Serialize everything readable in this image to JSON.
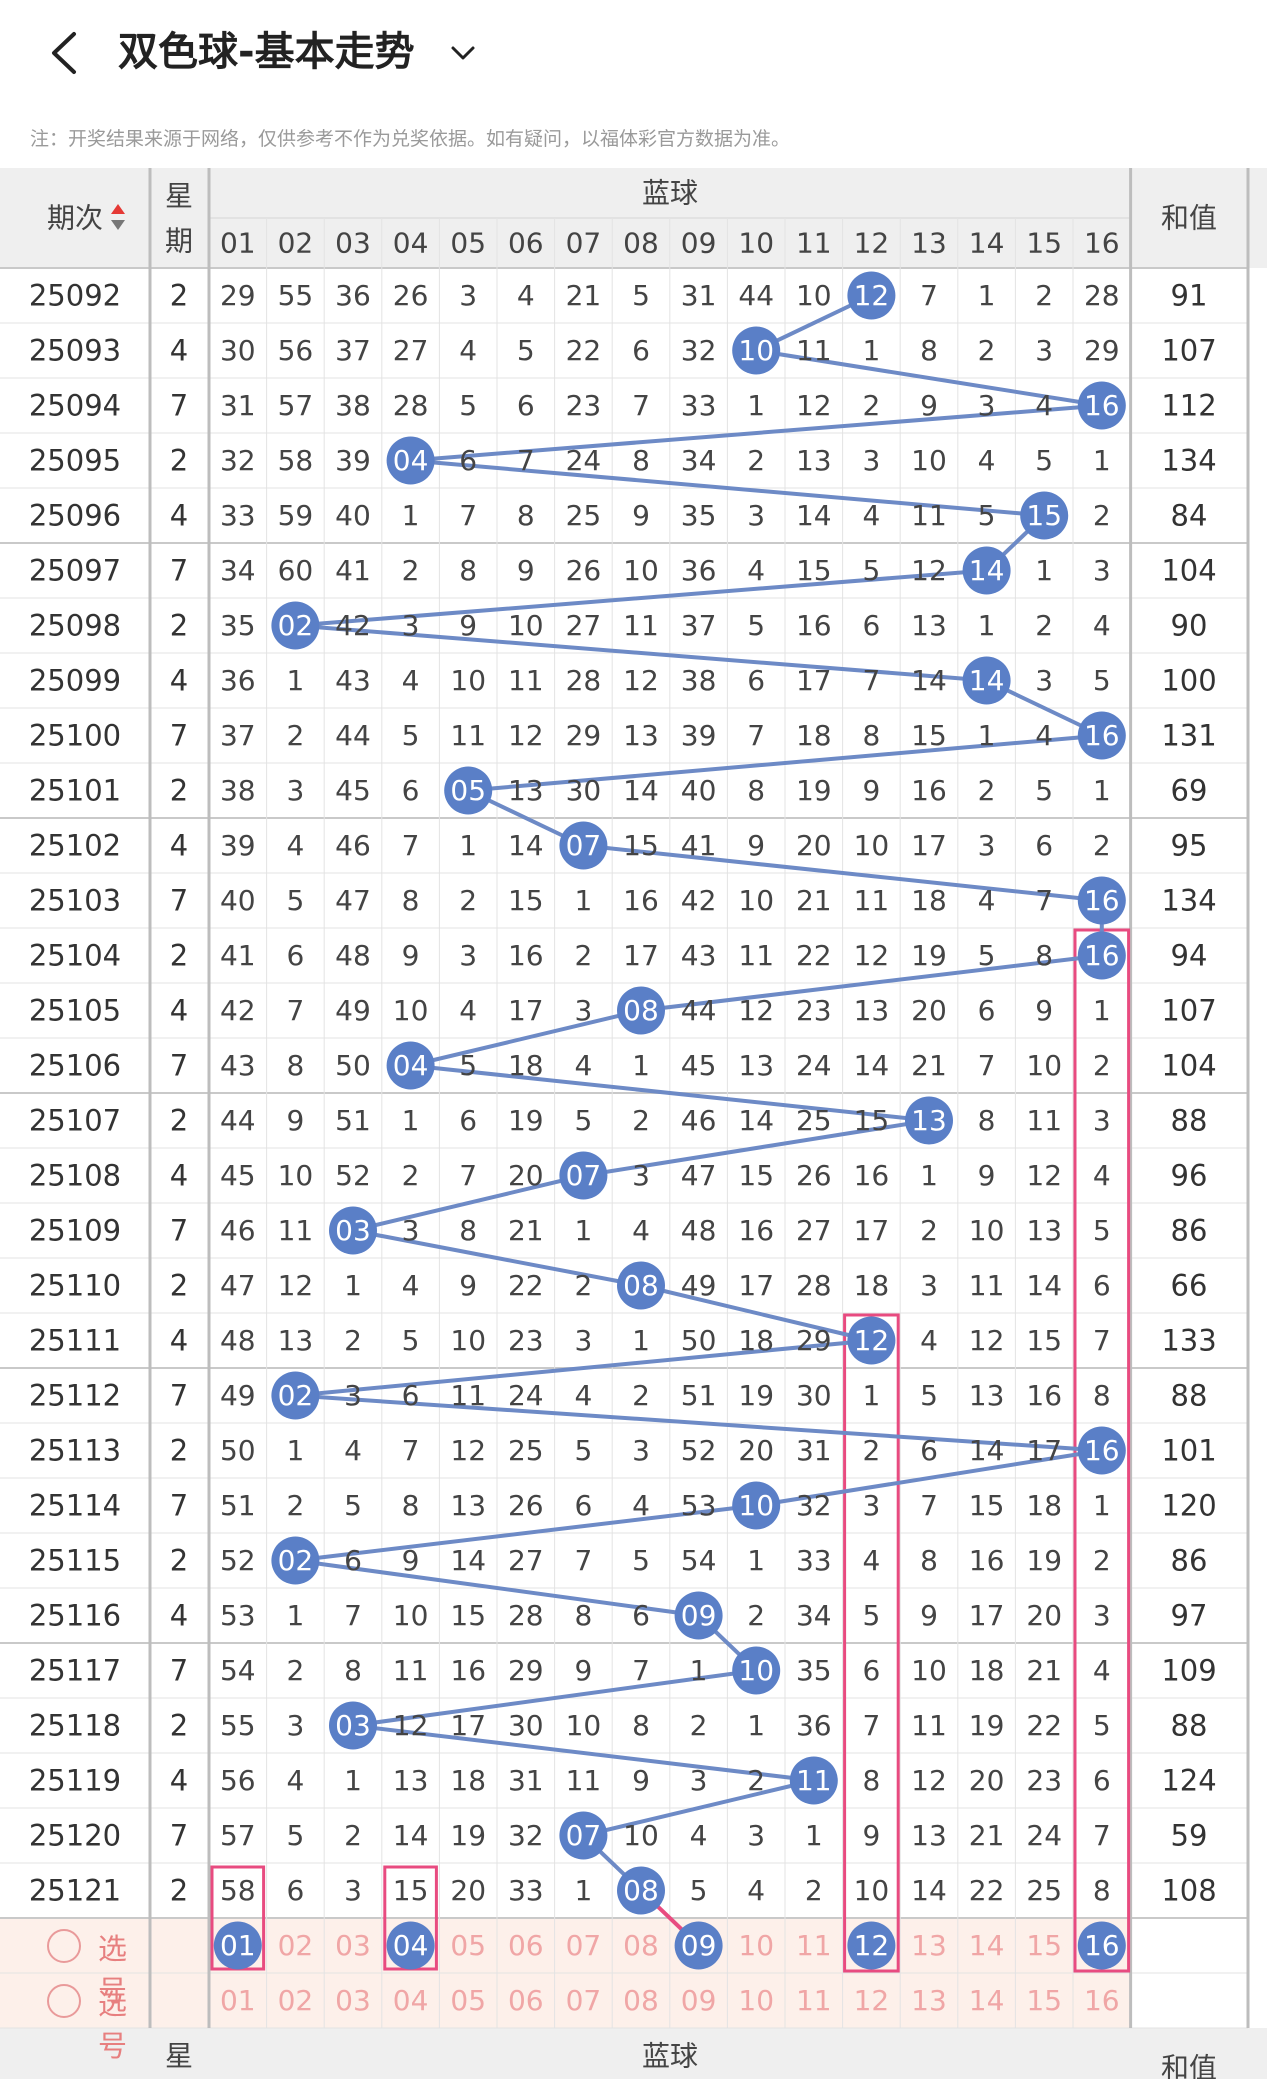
{
  "header": {
    "title": "双色球-基本走势",
    "back_icon": "chevron-left-icon",
    "dropdown_icon": "chevron-down-icon"
  },
  "notice": "注：开奖结果来源于网络，仅供参考不作为兑奖依据。如有疑问，以福体彩官方数据为准。",
  "table": {
    "col_period": "期次",
    "col_weekday": "星期",
    "col_blue": "蓝球",
    "col_sum": "和值",
    "numbers": [
      "01",
      "02",
      "03",
      "04",
      "05",
      "06",
      "07",
      "08",
      "09",
      "10",
      "11",
      "12",
      "13",
      "14",
      "15",
      "16"
    ],
    "rows": [
      {
        "period": "25092",
        "weekday": "2",
        "sum": "91",
        "hit": 12,
        "cells": [
          29,
          55,
          36,
          26,
          3,
          4,
          21,
          5,
          31,
          44,
          10,
          12,
          7,
          1,
          2,
          28
        ]
      },
      {
        "period": "25093",
        "weekday": "4",
        "sum": "107",
        "hit": 10,
        "cells": [
          30,
          56,
          37,
          27,
          4,
          5,
          22,
          6,
          32,
          10,
          11,
          1,
          8,
          2,
          3,
          29
        ]
      },
      {
        "period": "25094",
        "weekday": "7",
        "sum": "112",
        "hit": 16,
        "cells": [
          31,
          57,
          38,
          28,
          5,
          6,
          23,
          7,
          33,
          1,
          12,
          2,
          9,
          3,
          4,
          16
        ]
      },
      {
        "period": "25095",
        "weekday": "2",
        "sum": "134",
        "hit": 4,
        "cells": [
          32,
          58,
          39,
          4,
          6,
          7,
          24,
          8,
          34,
          2,
          13,
          3,
          10,
          4,
          5,
          1
        ]
      },
      {
        "period": "25096",
        "weekday": "4",
        "sum": "84",
        "hit": 15,
        "cells": [
          33,
          59,
          40,
          1,
          7,
          8,
          25,
          9,
          35,
          3,
          14,
          4,
          11,
          5,
          15,
          2
        ]
      },
      {
        "period": "25097",
        "weekday": "7",
        "sum": "104",
        "hit": 14,
        "cells": [
          34,
          60,
          41,
          2,
          8,
          9,
          26,
          10,
          36,
          4,
          15,
          5,
          12,
          14,
          1,
          3
        ]
      },
      {
        "period": "25098",
        "weekday": "2",
        "sum": "90",
        "hit": 2,
        "cells": [
          35,
          2,
          42,
          3,
          9,
          10,
          27,
          11,
          37,
          5,
          16,
          6,
          13,
          1,
          2,
          4
        ]
      },
      {
        "period": "25099",
        "weekday": "4",
        "sum": "100",
        "hit": 14,
        "cells": [
          36,
          1,
          43,
          4,
          10,
          11,
          28,
          12,
          38,
          6,
          17,
          7,
          14,
          14,
          3,
          5
        ]
      },
      {
        "period": "25100",
        "weekday": "7",
        "sum": "131",
        "hit": 16,
        "cells": [
          37,
          2,
          44,
          5,
          11,
          12,
          29,
          13,
          39,
          7,
          18,
          8,
          15,
          1,
          4,
          16
        ]
      },
      {
        "period": "25101",
        "weekday": "2",
        "sum": "69",
        "hit": 5,
        "cells": [
          38,
          3,
          45,
          6,
          5,
          13,
          30,
          14,
          40,
          8,
          19,
          9,
          16,
          2,
          5,
          1
        ]
      },
      {
        "period": "25102",
        "weekday": "4",
        "sum": "95",
        "hit": 7,
        "cells": [
          39,
          4,
          46,
          7,
          1,
          14,
          7,
          15,
          41,
          9,
          20,
          10,
          17,
          3,
          6,
          2
        ]
      },
      {
        "period": "25103",
        "weekday": "7",
        "sum": "134",
        "hit": 16,
        "cells": [
          40,
          5,
          47,
          8,
          2,
          15,
          1,
          16,
          42,
          10,
          21,
          11,
          18,
          4,
          7,
          16
        ]
      },
      {
        "period": "25104",
        "weekday": "2",
        "sum": "94",
        "hit": 16,
        "cells": [
          41,
          6,
          48,
          9,
          3,
          16,
          2,
          17,
          43,
          11,
          22,
          12,
          19,
          5,
          8,
          16
        ]
      },
      {
        "period": "25105",
        "weekday": "4",
        "sum": "107",
        "hit": 8,
        "cells": [
          42,
          7,
          49,
          10,
          4,
          17,
          3,
          8,
          44,
          12,
          23,
          13,
          20,
          6,
          9,
          1
        ]
      },
      {
        "period": "25106",
        "weekday": "7",
        "sum": "104",
        "hit": 4,
        "cells": [
          43,
          8,
          50,
          4,
          5,
          18,
          4,
          1,
          45,
          13,
          24,
          14,
          21,
          7,
          10,
          2
        ]
      },
      {
        "period": "25107",
        "weekday": "2",
        "sum": "88",
        "hit": 13,
        "cells": [
          44,
          9,
          51,
          1,
          6,
          19,
          5,
          2,
          46,
          14,
          25,
          15,
          13,
          8,
          11,
          3
        ]
      },
      {
        "period": "25108",
        "weekday": "4",
        "sum": "96",
        "hit": 7,
        "cells": [
          45,
          10,
          52,
          2,
          7,
          20,
          7,
          3,
          47,
          15,
          26,
          16,
          1,
          9,
          12,
          4
        ]
      },
      {
        "period": "25109",
        "weekday": "7",
        "sum": "86",
        "hit": 3,
        "cells": [
          46,
          11,
          3,
          3,
          8,
          21,
          1,
          4,
          48,
          16,
          27,
          17,
          2,
          10,
          13,
          5
        ]
      },
      {
        "period": "25110",
        "weekday": "2",
        "sum": "66",
        "hit": 8,
        "cells": [
          47,
          12,
          1,
          4,
          9,
          22,
          2,
          8,
          49,
          17,
          28,
          18,
          3,
          11,
          14,
          6
        ]
      },
      {
        "period": "25111",
        "weekday": "4",
        "sum": "133",
        "hit": 12,
        "cells": [
          48,
          13,
          2,
          5,
          10,
          23,
          3,
          1,
          50,
          18,
          29,
          12,
          4,
          12,
          15,
          7
        ]
      },
      {
        "period": "25112",
        "weekday": "7",
        "sum": "88",
        "hit": 2,
        "cells": [
          49,
          2,
          3,
          6,
          11,
          24,
          4,
          2,
          51,
          19,
          30,
          1,
          5,
          13,
          16,
          8
        ]
      },
      {
        "period": "25113",
        "weekday": "2",
        "sum": "101",
        "hit": 16,
        "cells": [
          50,
          1,
          4,
          7,
          12,
          25,
          5,
          3,
          52,
          20,
          31,
          2,
          6,
          14,
          17,
          16
        ]
      },
      {
        "period": "25114",
        "weekday": "7",
        "sum": "120",
        "hit": 10,
        "cells": [
          51,
          2,
          5,
          8,
          13,
          26,
          6,
          4,
          53,
          10,
          32,
          3,
          7,
          15,
          18,
          1
        ]
      },
      {
        "period": "25115",
        "weekday": "2",
        "sum": "86",
        "hit": 2,
        "cells": [
          52,
          2,
          6,
          9,
          14,
          27,
          7,
          5,
          54,
          1,
          33,
          4,
          8,
          16,
          19,
          2
        ]
      },
      {
        "period": "25116",
        "weekday": "4",
        "sum": "97",
        "hit": 9,
        "cells": [
          53,
          1,
          7,
          10,
          15,
          28,
          8,
          6,
          9,
          2,
          34,
          5,
          9,
          17,
          20,
          3
        ]
      },
      {
        "period": "25117",
        "weekday": "7",
        "sum": "109",
        "hit": 10,
        "cells": [
          54,
          2,
          8,
          11,
          16,
          29,
          9,
          7,
          1,
          10,
          35,
          6,
          10,
          18,
          21,
          4
        ]
      },
      {
        "period": "25118",
        "weekday": "2",
        "sum": "88",
        "hit": 3,
        "cells": [
          55,
          3,
          3,
          12,
          17,
          30,
          10,
          8,
          2,
          1,
          36,
          7,
          11,
          19,
          22,
          5
        ]
      },
      {
        "period": "25119",
        "weekday": "4",
        "sum": "124",
        "hit": 11,
        "cells": [
          56,
          4,
          1,
          13,
          18,
          31,
          11,
          9,
          3,
          2,
          11,
          8,
          12,
          20,
          23,
          6
        ]
      },
      {
        "period": "25120",
        "weekday": "7",
        "sum": "59",
        "hit": 7,
        "cells": [
          57,
          5,
          2,
          14,
          19,
          32,
          7,
          10,
          4,
          3,
          1,
          9,
          13,
          21,
          24,
          7
        ]
      },
      {
        "period": "25121",
        "weekday": "2",
        "sum": "108",
        "hit": 8,
        "cells": [
          58,
          6,
          3,
          15,
          20,
          33,
          1,
          8,
          5,
          4,
          2,
          10,
          14,
          22,
          25,
          8
        ]
      }
    ]
  },
  "select_rows": {
    "label": "选号",
    "row1_selected": [
      1,
      4,
      9,
      12,
      16
    ],
    "row2_selected": []
  },
  "colors": {
    "ball": "#5a7fc7",
    "line": "#6d8ac6",
    "highlight": "#e84b80",
    "select_bg": "#fdf0ea",
    "select_text": "#f0a6a6",
    "grid": "#e3e3e3"
  }
}
